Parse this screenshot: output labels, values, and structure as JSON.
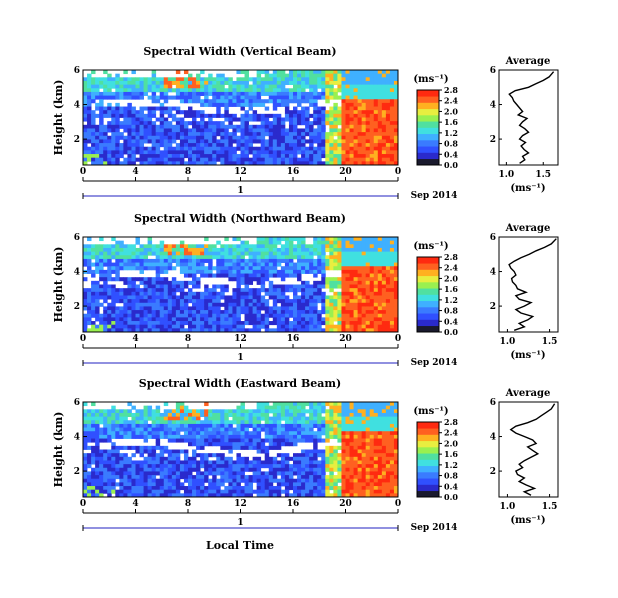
{
  "xlabel_common": "Local Time",
  "date_label": "Sep 2014",
  "colorbar_unit": "(ms⁻¹)",
  "colorbar_ticks": [
    "0.0",
    "0.4",
    "0.8",
    "1.2",
    "1.6",
    "2.0",
    "2.4",
    "2.8"
  ],
  "colors": [
    "#1a1a2e",
    "#2a2acc",
    "#3050ff",
    "#3a7bff",
    "#3fb0ff",
    "#40e0e0",
    "#50e0a0",
    "#9af050",
    "#e8ee40",
    "#ffb020",
    "#ff6020",
    "#ff2a10"
  ],
  "chart_data": [
    {
      "type": "heatmap",
      "title": "Spectral Width (Vertical Beam)",
      "ylabel": "Height (km)",
      "xticks": [
        "0",
        "4",
        "8",
        "12",
        "16",
        "20",
        "0"
      ],
      "yticks": [
        "2",
        "4",
        "6"
      ],
      "xlim": [
        0,
        24
      ],
      "ylim": [
        0.5,
        6
      ],
      "cbar_ticks": [
        "0.0",
        "0.4",
        "0.8",
        "1.2",
        "1.6",
        "2.0",
        "2.4",
        "2.8"
      ],
      "day_marker": "1",
      "profile": {
        "title": "Average",
        "xlabel": "(ms⁻¹)",
        "xticks": [
          "1.0",
          "1.5"
        ],
        "yticks": [
          "2",
          "4",
          "6"
        ],
        "xlim": [
          0.9,
          1.7
        ],
        "x": [
          1.18,
          1.25,
          1.22,
          1.3,
          1.24,
          1.2,
          1.26,
          1.18,
          1.22,
          1.3,
          1.25,
          1.18,
          1.22,
          1.28,
          1.16,
          1.22,
          1.18,
          1.14,
          1.1,
          1.08,
          1.04,
          1.12,
          1.3,
          1.4,
          1.5,
          1.58,
          1.64
        ],
        "y": [
          0.6,
          0.8,
          1.0,
          1.2,
          1.4,
          1.6,
          1.8,
          2.0,
          2.2,
          2.4,
          2.6,
          2.8,
          3.0,
          3.2,
          3.4,
          3.6,
          3.8,
          4.0,
          4.2,
          4.4,
          4.6,
          4.8,
          5.0,
          5.2,
          5.4,
          5.6,
          5.9
        ]
      }
    },
    {
      "type": "heatmap",
      "title": "Spectral Width (Northward Beam)",
      "ylabel": "Height (km)",
      "xticks": [
        "0",
        "4",
        "8",
        "12",
        "16",
        "20",
        "0"
      ],
      "yticks": [
        "2",
        "4",
        "6"
      ],
      "xlim": [
        0,
        24
      ],
      "ylim": [
        0.5,
        6
      ],
      "cbar_ticks": [
        "0.0",
        "0.4",
        "0.8",
        "1.2",
        "1.6",
        "2.0",
        "2.4",
        "2.8"
      ],
      "day_marker": "1",
      "profile": {
        "title": "Average",
        "xlabel": "(ms⁻¹)",
        "xticks": [
          "1.0",
          "1.5"
        ],
        "yticks": [
          "2",
          "4",
          "6"
        ],
        "xlim": [
          0.9,
          1.6
        ],
        "x": [
          1.08,
          1.2,
          1.14,
          1.24,
          1.3,
          1.16,
          1.1,
          1.2,
          1.28,
          1.14,
          1.1,
          1.22,
          1.12,
          1.1,
          1.06,
          1.05,
          1.1,
          1.08,
          1.04,
          1.02,
          1.08,
          1.16,
          1.26,
          1.34,
          1.44,
          1.52,
          1.58
        ],
        "y": [
          0.6,
          0.8,
          1.0,
          1.2,
          1.4,
          1.6,
          1.8,
          2.0,
          2.2,
          2.4,
          2.6,
          2.8,
          3.0,
          3.2,
          3.4,
          3.6,
          3.8,
          4.0,
          4.2,
          4.4,
          4.6,
          4.8,
          5.0,
          5.2,
          5.4,
          5.6,
          5.9
        ]
      }
    },
    {
      "type": "heatmap",
      "title": "Spectral Width (Eastward Beam)",
      "ylabel": "Height (km)",
      "xticks": [
        "0",
        "4",
        "8",
        "12",
        "16",
        "20",
        "0"
      ],
      "yticks": [
        "2",
        "4",
        "6"
      ],
      "xlim": [
        0,
        24
      ],
      "ylim": [
        0.5,
        6
      ],
      "cbar_ticks": [
        "0.0",
        "0.4",
        "0.8",
        "1.2",
        "1.6",
        "2.0",
        "2.4",
        "2.8"
      ],
      "day_marker": "1",
      "profile": {
        "title": "Average",
        "xlabel": "(ms⁻¹)",
        "xticks": [
          "1.0",
          "1.5"
        ],
        "yticks": [
          "2",
          "4",
          "6"
        ],
        "xlim": [
          0.9,
          1.6
        ],
        "x": [
          1.28,
          1.2,
          1.32,
          1.22,
          1.14,
          1.2,
          1.12,
          1.1,
          1.18,
          1.14,
          1.2,
          1.28,
          1.36,
          1.3,
          1.24,
          1.34,
          1.3,
          1.2,
          1.1,
          1.04,
          1.1,
          1.24,
          1.34,
          1.4,
          1.46,
          1.52,
          1.56
        ],
        "y": [
          0.6,
          0.8,
          1.0,
          1.2,
          1.4,
          1.6,
          1.8,
          2.0,
          2.2,
          2.4,
          2.6,
          2.8,
          3.0,
          3.2,
          3.4,
          3.6,
          3.8,
          4.0,
          4.2,
          4.4,
          4.6,
          4.8,
          5.0,
          5.2,
          5.4,
          5.6,
          5.9
        ]
      }
    }
  ]
}
